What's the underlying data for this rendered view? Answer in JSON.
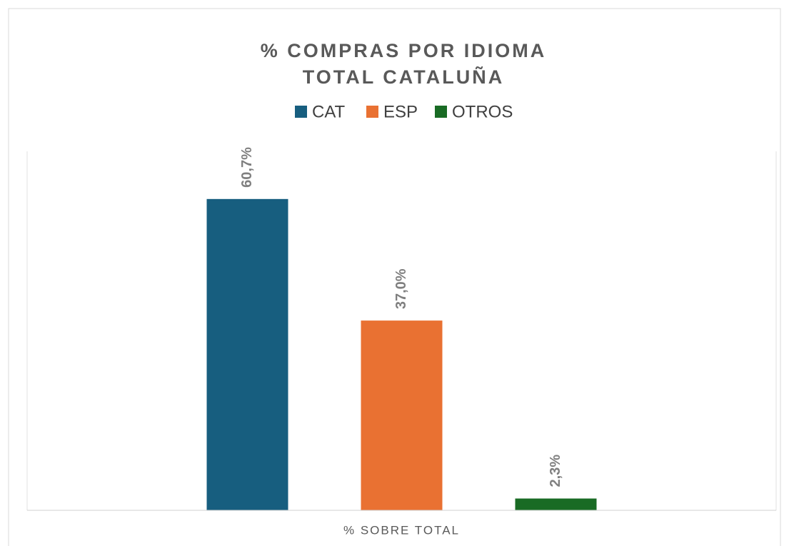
{
  "chart_data": {
    "type": "bar",
    "title": [
      "% COMPRAS POR IDIOMA",
      "TOTAL CATALUÑA"
    ],
    "categories": [
      "% SOBRE TOTAL"
    ],
    "series": [
      {
        "name": "CAT",
        "color": "#175e7f",
        "values": [
          60.7
        ],
        "value_labels": [
          "60,7%"
        ]
      },
      {
        "name": "ESP",
        "color": "#e97132",
        "values": [
          37.0
        ],
        "value_labels": [
          "37,0%"
        ]
      },
      {
        "name": "OTROS",
        "color": "#196b24",
        "values": [
          2.3
        ],
        "value_labels": [
          "2,3%"
        ]
      }
    ],
    "ylim": [
      0,
      70
    ],
    "legend": "top"
  }
}
